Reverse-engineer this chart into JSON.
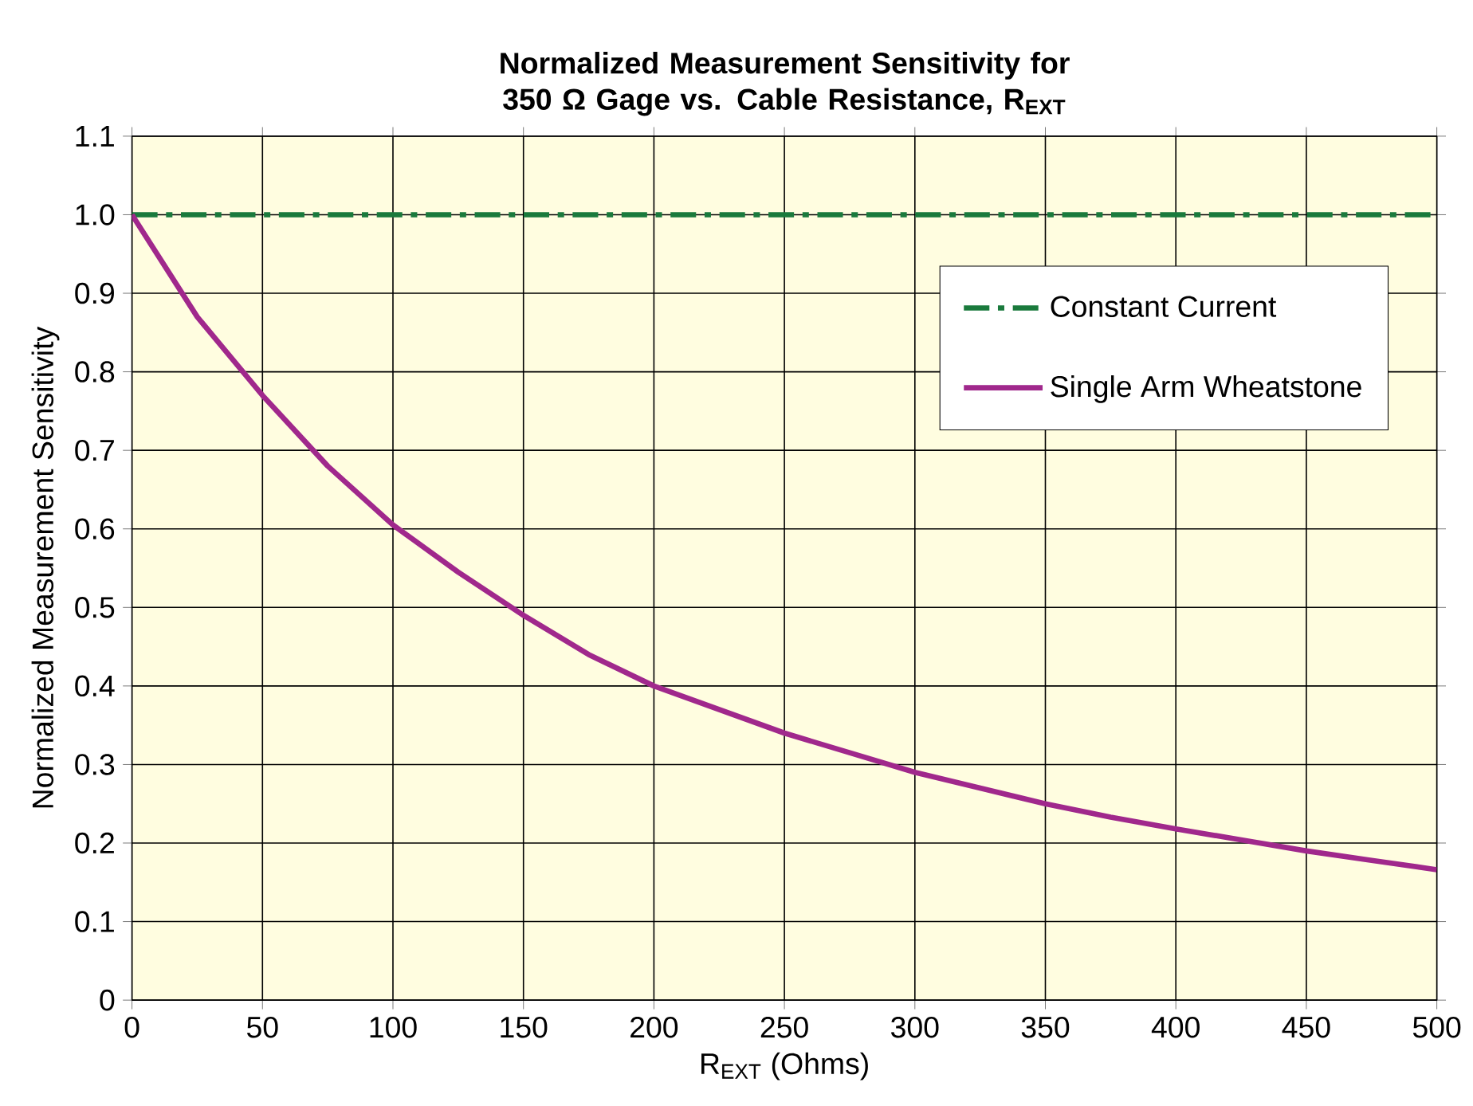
{
  "chart_data": {
    "type": "line",
    "title": "Normalized Measurement Sensitivity for 350 Ω Gage vs. Cable Resistance, R$_{EXT}$",
    "xlabel": "R$_{EXT}$ (Ohms)",
    "ylabel": "Normalized Measurement Sensitivity",
    "xlim": [
      0,
      500
    ],
    "ylim": [
      0,
      1.1
    ],
    "xticks": [
      0,
      50,
      100,
      150,
      200,
      250,
      300,
      350,
      400,
      450,
      500
    ],
    "yticks": [
      0,
      0.1,
      0.2,
      0.3,
      0.4,
      0.5,
      0.6,
      0.7,
      0.8,
      0.9,
      {
        "value": 1,
        "label": "1.0"
      },
      1.1
    ],
    "grid": true,
    "legend": "top right",
    "marker": "none",
    "series": [
      {
        "name": "Constant Current",
        "color": "#1a7a3c",
        "line_style": "dashdot",
        "x": [
          0,
          500
        ],
        "values": [
          1,
          1
        ]
      },
      {
        "name": "Single Arm Wheatstone",
        "color": "#a0288c",
        "line_style": "solid",
        "x": [
          0,
          25,
          50,
          75,
          100,
          125,
          150,
          175,
          200,
          225,
          250,
          275,
          300,
          325,
          350,
          375,
          400,
          425,
          450,
          475,
          500
        ],
        "values": [
          1,
          0.87,
          0.77,
          0.68,
          0.605,
          0.545,
          0.49,
          0.44,
          0.4,
          0.37,
          0.34,
          0.315,
          0.29,
          0.27,
          0.25,
          0.233,
          0.218,
          0.204,
          0.19,
          0.178,
          0.166
        ]
      }
    ]
  }
}
